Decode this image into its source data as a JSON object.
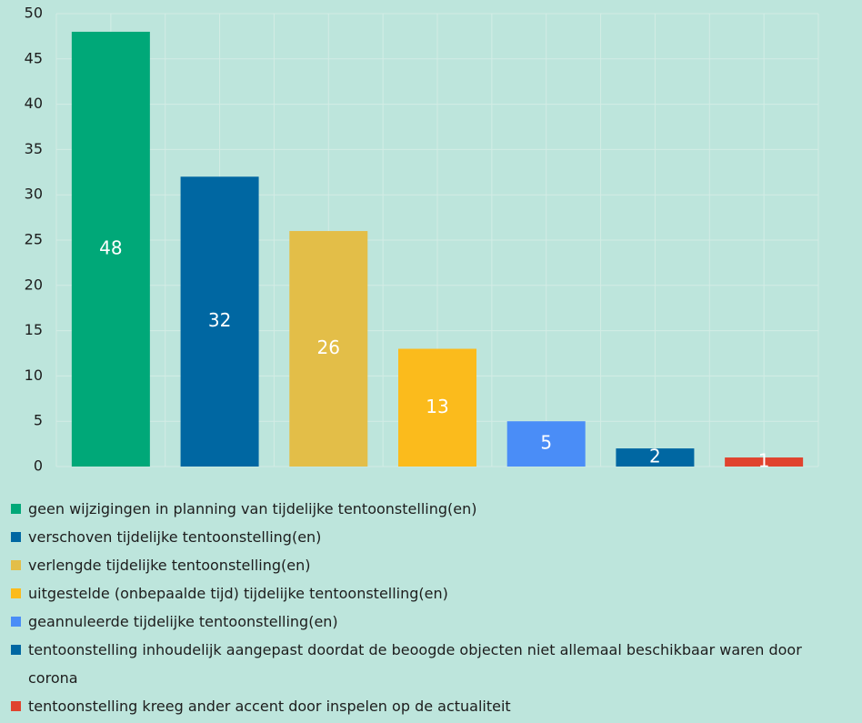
{
  "chart_data": {
    "type": "bar",
    "categories": [
      "geen wijzigingen in planning van tijdelijke tentoonstelling(en)",
      "verschoven tijdelijke tentoonstelling(en)",
      "verlengde tijdelijke tentoonstelling(en)",
      "uitgestelde (onbepaalde tijd) tijdelijke tentoonstelling(en)",
      "geannuleerde tijdelijke tentoonstelling(en)",
      "tentoonstelling inhoudelijk aangepast doordat de beoogde objecten niet allemaal beschikbaar waren door corona",
      "tentoonstelling kreeg ander accent door inspelen op de actualiteit"
    ],
    "values": [
      48,
      32,
      26,
      13,
      5,
      2,
      1
    ],
    "colors": [
      "#00a878",
      "#0067a2",
      "#e3be48",
      "#fbbb1c",
      "#4a8df7",
      "#0067a2",
      "#e0432e"
    ],
    "ylim": [
      0,
      50
    ],
    "yticks": [
      0,
      5,
      10,
      15,
      20,
      25,
      30,
      35,
      40,
      45,
      50
    ],
    "grid": true,
    "legend": "bottom"
  }
}
